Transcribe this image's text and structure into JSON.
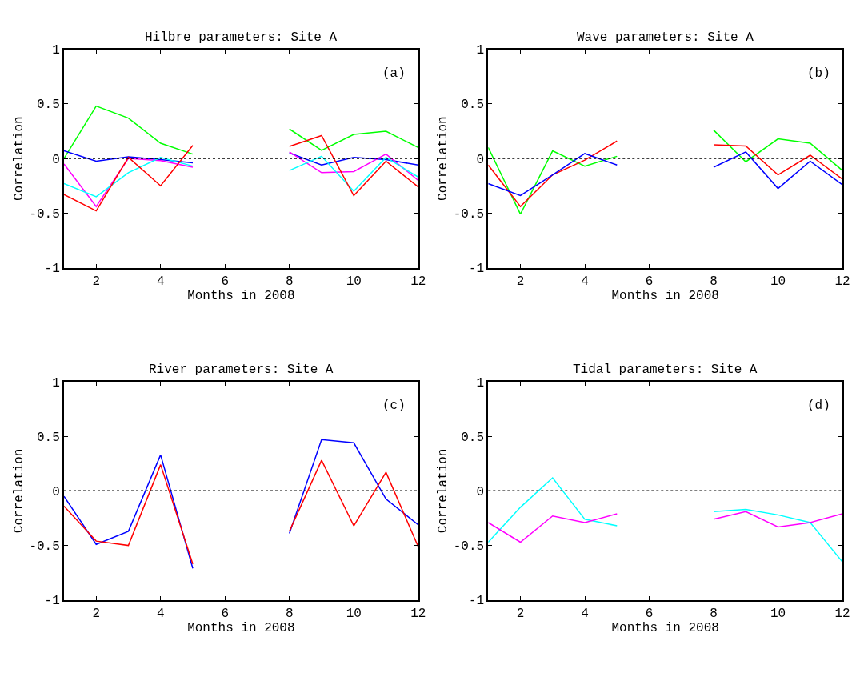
{
  "chart_data": [
    {
      "type": "line",
      "title": "Hilbre parameters: Site A",
      "xlabel": "Months in 2008",
      "ylabel": "Correlation",
      "annotations": [
        "(a)"
      ],
      "x": [
        1,
        2,
        3,
        4,
        5,
        6,
        7,
        8,
        9,
        10,
        11,
        12
      ],
      "xlim": [
        1,
        12
      ],
      "xticks": [
        2,
        4,
        6,
        8,
        10,
        12
      ],
      "ylim": [
        -1,
        1
      ],
      "yticks": [
        -1,
        -0.5,
        0,
        0.5,
        1
      ],
      "line_style": "solid",
      "ref_lines": [
        {
          "axis": "y",
          "value": 0,
          "color": "#000000",
          "line_style": "dotted"
        }
      ],
      "series": [
        {
          "color": "#00ff00",
          "values": [
            0,
            0.48,
            0.37,
            0.14,
            0.04,
            null,
            null,
            0.27,
            0.075,
            0.22,
            0.25,
            0.1
          ]
        },
        {
          "color": "#0000ff",
          "values": [
            0.07,
            -0.025,
            0.015,
            -0.01,
            -0.04,
            null,
            null,
            0.05,
            -0.06,
            0.01,
            -0.01,
            -0.06
          ]
        },
        {
          "color": "#ff00ff",
          "values": [
            -0.05,
            -0.44,
            0,
            -0.02,
            -0.08,
            null,
            null,
            0.06,
            -0.13,
            -0.12,
            0.04,
            -0.2
          ]
        },
        {
          "color": "#00ffff",
          "values": [
            -0.23,
            -0.35,
            -0.13,
            0.01,
            -0.07,
            null,
            null,
            -0.11,
            0.02,
            -0.3,
            0.01,
            -0.17
          ]
        },
        {
          "color": "#ff0000",
          "values": [
            -0.33,
            -0.48,
            0.01,
            -0.25,
            0.12,
            null,
            null,
            0.11,
            0.21,
            -0.34,
            -0.025,
            -0.26
          ]
        }
      ]
    },
    {
      "type": "line",
      "title": "Wave parameters: Site A",
      "xlabel": "Months in 2008",
      "ylabel": "Correlation",
      "annotations": [
        "(b)"
      ],
      "x": [
        1,
        2,
        3,
        4,
        5,
        6,
        7,
        8,
        9,
        10,
        11,
        12
      ],
      "xlim": [
        1,
        12
      ],
      "xticks": [
        2,
        4,
        6,
        8,
        10,
        12
      ],
      "ylim": [
        -1,
        1
      ],
      "yticks": [
        -1,
        -0.5,
        0,
        0.5,
        1
      ],
      "line_style": "solid",
      "ref_lines": [
        {
          "axis": "y",
          "value": 0,
          "color": "#000000",
          "line_style": "dotted"
        }
      ],
      "series": [
        {
          "color": "#00ff00",
          "values": [
            0.1,
            -0.51,
            0.07,
            -0.07,
            0.02,
            null,
            null,
            0.26,
            -0.03,
            0.18,
            0.14,
            -0.11
          ]
        },
        {
          "color": "#ff0000",
          "values": [
            -0.06,
            -0.44,
            -0.15,
            -0.015,
            0.16,
            null,
            null,
            0.125,
            0.115,
            -0.15,
            0.03,
            -0.19
          ]
        },
        {
          "color": "#0000ff",
          "values": [
            -0.23,
            -0.34,
            -0.15,
            0.045,
            -0.06,
            null,
            null,
            -0.08,
            0.06,
            -0.275,
            -0.025,
            -0.24
          ]
        }
      ]
    },
    {
      "type": "line",
      "title": "River parameters: Site A",
      "xlabel": "Months in 2008",
      "ylabel": "Correlation",
      "annotations": [
        "(c)"
      ],
      "x": [
        1,
        2,
        3,
        4,
        5,
        6,
        7,
        8,
        9,
        10,
        11,
        12
      ],
      "xlim": [
        1,
        12
      ],
      "xticks": [
        2,
        4,
        6,
        8,
        10,
        12
      ],
      "ylim": [
        -1,
        1
      ],
      "yticks": [
        -1,
        -0.5,
        0,
        0.5,
        1
      ],
      "line_style": "solid",
      "ref_lines": [
        {
          "axis": "y",
          "value": 0,
          "color": "#000000",
          "line_style": "dotted"
        }
      ],
      "series": [
        {
          "color": "#0000ff",
          "values": [
            -0.05,
            -0.49,
            -0.37,
            0.33,
            -0.71,
            null,
            null,
            -0.39,
            0.47,
            0.44,
            -0.075,
            -0.31
          ]
        },
        {
          "color": "#ff0000",
          "values": [
            -0.14,
            -0.46,
            -0.5,
            0.24,
            -0.67,
            null,
            null,
            -0.37,
            0.28,
            -0.32,
            0.17,
            -0.51
          ]
        }
      ]
    },
    {
      "type": "line",
      "title": "Tidal parameters: Site A",
      "xlabel": "Months in 2008",
      "ylabel": "Correlation",
      "annotations": [
        "(d)"
      ],
      "x": [
        1,
        2,
        3,
        4,
        5,
        6,
        7,
        8,
        9,
        10,
        11,
        12
      ],
      "xlim": [
        1,
        12
      ],
      "xticks": [
        2,
        4,
        6,
        8,
        10,
        12
      ],
      "ylim": [
        -1,
        1
      ],
      "yticks": [
        -1,
        -0.5,
        0,
        0.5,
        1
      ],
      "line_style": "solid",
      "ref_lines": [
        {
          "axis": "y",
          "value": 0,
          "color": "#000000",
          "line_style": "dotted"
        }
      ],
      "series": [
        {
          "color": "#00ffff",
          "values": [
            -0.47,
            -0.15,
            0.12,
            -0.26,
            -0.32,
            null,
            null,
            -0.19,
            -0.17,
            -0.22,
            -0.29,
            -0.65
          ]
        },
        {
          "color": "#ff00ff",
          "values": [
            -0.29,
            -0.47,
            -0.23,
            -0.29,
            -0.21,
            null,
            null,
            -0.26,
            -0.19,
            -0.33,
            -0.29,
            -0.21
          ]
        }
      ]
    }
  ]
}
